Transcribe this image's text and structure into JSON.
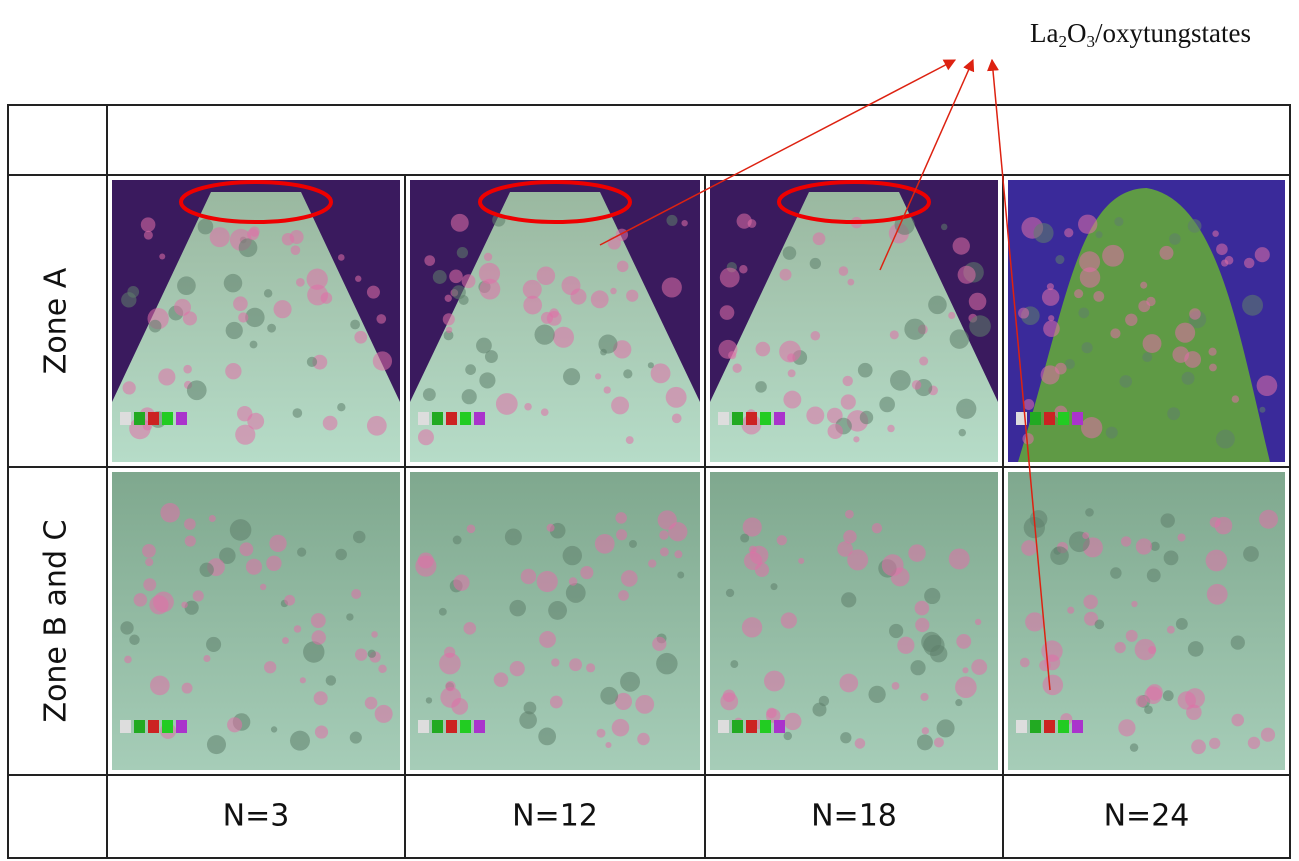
{
  "annotation": [
    {
      "text": "La"
    },
    {
      "text": "2",
      "sub": true
    },
    {
      "text": "O"
    },
    {
      "text": "3",
      "sub": true
    },
    {
      "text": "/oxytungstates"
    }
  ],
  "table": {
    "rows": [
      "Zone A",
      "Zone B and C"
    ],
    "columns": [
      "N=3",
      "N=12",
      "N=18",
      "N=24"
    ]
  }
}
